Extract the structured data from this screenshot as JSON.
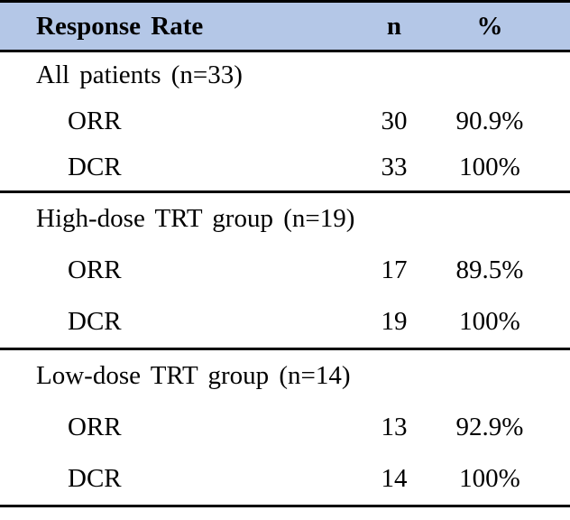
{
  "table": {
    "columns": [
      "Response Rate",
      "n",
      "%"
    ],
    "sections": [
      {
        "title": "All patients (n=33)",
        "rows": [
          {
            "label": "ORR",
            "n": "30",
            "pct": "90.9%"
          },
          {
            "label": "DCR",
            "n": "33",
            "pct": "100%"
          }
        ]
      },
      {
        "title": "High-dose TRT group (n=19)",
        "rows": [
          {
            "label": "ORR",
            "n": "17",
            "pct": "89.5%"
          },
          {
            "label": "DCR",
            "n": "19",
            "pct": "100%"
          }
        ]
      },
      {
        "title": "Low-dose TRT group (n=14)",
        "rows": [
          {
            "label": "ORR",
            "n": "13",
            "pct": "92.9%"
          },
          {
            "label": "DCR",
            "n": "14",
            "pct": "100%"
          }
        ]
      }
    ],
    "colors": {
      "header_bg": "#b4c7e7",
      "border": "#000000",
      "text": "#000000",
      "page_bg": "#ffffff"
    }
  }
}
